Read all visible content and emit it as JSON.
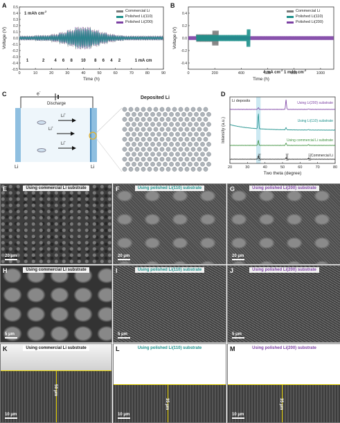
{
  "labels": [
    "A",
    "B",
    "C",
    "D",
    "E",
    "F",
    "G",
    "H",
    "I",
    "J",
    "K",
    "L",
    "M"
  ],
  "colors": {
    "commercial": "#7a7a7a",
    "li110": "#1a8f8a",
    "li200": "#7b3fa3",
    "xrd_commercial": "#222222",
    "xrd_commercial_sub": "#3a8f3a",
    "xrd_li110": "#1a8f8a",
    "xrd_li200": "#7b3fa3",
    "highlight": "#bfe3ef"
  },
  "panel_a": {
    "annotation": "1 mAh cm",
    "annotation_sup": "-2",
    "ylabel": "Voltage (V)",
    "xlabel": "Time (h)",
    "rates": [
      "1",
      "2",
      "4",
      "6",
      "8",
      "10",
      "8",
      "6",
      "4",
      "2",
      "1 mA cm"
    ],
    "rate_sup": "-2"
  },
  "panel_b": {
    "ylabel": "Voltage (V)",
    "xlabel": "Time (h)",
    "annotation": "4 mA cm",
    "annotation_sup": "-2",
    "annotation2": " 1 mAh cm",
    "annotation2_sup": "-2"
  },
  "legend": [
    "Commercial Li",
    "Polished Li(110)",
    "Polished Li(200)"
  ],
  "legend_b": [
    "Commercial Li",
    "Polished Li(110)",
    "Polished Li(200)"
  ],
  "panel_c": {
    "electron": "e",
    "electron_sup": "-",
    "discharge": "Discharge",
    "ion": "Li",
    "ion_sup": "+",
    "left_electrode": "Li",
    "right_electrode": "Li",
    "deposited": "Deposited Li"
  },
  "panel_d": {
    "ylabel": "Intensity (a.u.)",
    "xlabel": "Two theta (degree)",
    "li_deposits": "Li deposits",
    "series_labels": [
      "Using Li(200) substrate",
      "Using Li(110) substrate",
      "Using commercial Li substrate",
      "Commercial Li"
    ],
    "peaks": [
      "(110)",
      "(200)",
      "(211)"
    ]
  },
  "sem": {
    "row1": [
      "Using commercial Li substrate",
      "Using polished Li(110) substrate",
      "Using polished Li(200) substrate"
    ],
    "row2": [
      "Using commercial Li substrate",
      "Using polished Li(110) substrate",
      "Using polished Li(200) substrate"
    ],
    "row3": [
      "Using commercial Li substrate",
      "Using polished Li(110) substrate",
      "Using polished Li(200) substrate"
    ],
    "scale_row1": "20 μm",
    "scale_row2": "5 μm",
    "scale_row3": "10 μm",
    "thickness": [
      "50 μm",
      "35 μm",
      "35 μm"
    ]
  },
  "chart_data": [
    {
      "type": "line",
      "title": "",
      "xlabel": "Time (h)",
      "ylabel": "Voltage (V)",
      "xlim": [
        0,
        90
      ],
      "ylim": [
        -0.5,
        0.5
      ],
      "x_ticks": [
        0,
        10,
        20,
        30,
        40,
        50,
        60,
        70,
        80,
        90
      ],
      "y_ticks": [
        -0.5,
        -0.4,
        -0.3,
        -0.2,
        -0.1,
        0.0,
        0.1,
        0.2,
        0.3,
        0.4,
        0.5
      ],
      "segments_current_density": [
        1,
        2,
        4,
        6,
        8,
        10,
        8,
        6,
        4,
        2,
        1
      ],
      "segment_bounds": [
        0,
        10,
        20,
        25,
        30,
        35,
        45,
        50,
        55,
        60,
        65,
        90
      ],
      "amplitude_commercial": [
        0.04,
        0.05,
        0.07,
        0.1,
        0.14,
        0.18,
        0.14,
        0.1,
        0.07,
        0.05,
        0.04
      ],
      "amplitude_110": [
        0.03,
        0.04,
        0.05,
        0.08,
        0.12,
        0.16,
        0.12,
        0.08,
        0.05,
        0.04,
        0.03
      ],
      "amplitude_200": [
        0.035,
        0.045,
        0.06,
        0.09,
        0.13,
        0.18,
        0.13,
        0.09,
        0.06,
        0.045,
        0.035
      ],
      "series": [
        {
          "name": "Commercial Li"
        },
        {
          "name": "Polished Li(110)"
        },
        {
          "name": "Polished Li(200)"
        }
      ]
    },
    {
      "type": "line",
      "title": "",
      "xlabel": "Time (h)",
      "ylabel": "Voltage (V)",
      "xlim": [
        0,
        1100
      ],
      "ylim": [
        -0.5,
        0.5
      ],
      "x_ticks": [
        0,
        200,
        400,
        600,
        800,
        1000
      ],
      "y_ticks": [
        -0.4,
        -0.2,
        0.0,
        0.2,
        0.4
      ],
      "series": [
        {
          "name": "Commercial Li",
          "end_time": 230,
          "amplitude": 0.06
        },
        {
          "name": "Polished Li(110)",
          "end_time": 470,
          "amplitude": 0.05
        },
        {
          "name": "Polished Li(200)",
          "end_time": 1100,
          "amplitude": 0.03
        }
      ]
    },
    {
      "type": "line",
      "title": "",
      "xlabel": "Two theta (degree)",
      "ylabel": "Intensity (a.u.)",
      "xlim": [
        20,
        80
      ],
      "x_ticks": [
        20,
        30,
        40,
        50,
        60,
        70,
        80
      ],
      "peak_positions": [
        36.2,
        52.0,
        64.8
      ],
      "series": [
        {
          "name": "Using Li(200) substrate",
          "peaks": [
            0.2,
            1.0,
            0.05
          ]
        },
        {
          "name": "Using Li(110) substrate",
          "peaks": [
            1.0,
            0.15,
            0.05
          ]
        },
        {
          "name": "Using commercial Li substrate",
          "peaks": [
            0.6,
            0.3,
            0.1
          ]
        },
        {
          "name": "Commercial Li",
          "peaks": [
            0.5,
            0.25,
            0.15
          ]
        }
      ]
    }
  ]
}
